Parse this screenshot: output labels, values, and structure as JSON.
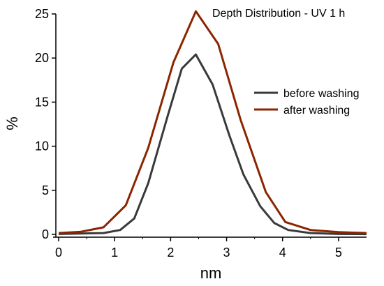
{
  "chart_data": {
    "type": "line",
    "title": "Depth Distribution - UV 1 h",
    "xlabel": "nm",
    "ylabel": "%",
    "xlim": [
      -0.05,
      5.5
    ],
    "ylim": [
      0,
      25
    ],
    "xticks": [
      0,
      1,
      2,
      3,
      4,
      5
    ],
    "yticks": [
      0,
      5,
      10,
      15,
      20,
      25
    ],
    "grid": false,
    "legend_position": "right",
    "series": [
      {
        "name": "before washing",
        "color": "#3a3a3a",
        "x": [
          0,
          0.4,
          0.8,
          1.1,
          1.35,
          1.6,
          1.95,
          2.2,
          2.45,
          2.75,
          3.05,
          3.3,
          3.6,
          3.85,
          4.1,
          4.5,
          5.0,
          5.5
        ],
        "y": [
          0.05,
          0.1,
          0.15,
          0.5,
          1.8,
          5.8,
          13.5,
          18.8,
          20.4,
          17.0,
          11.2,
          6.8,
          3.2,
          1.3,
          0.5,
          0.15,
          0.05,
          0.03
        ]
      },
      {
        "name": "after washing",
        "color": "#8b2500",
        "x": [
          0,
          0.4,
          0.8,
          1.2,
          1.6,
          2.05,
          2.45,
          2.85,
          3.25,
          3.7,
          4.05,
          4.5,
          5.0,
          5.5
        ],
        "y": [
          0.15,
          0.3,
          0.8,
          3.3,
          9.8,
          19.5,
          25.3,
          21.6,
          13.0,
          4.8,
          1.4,
          0.5,
          0.25,
          0.15
        ]
      }
    ]
  }
}
